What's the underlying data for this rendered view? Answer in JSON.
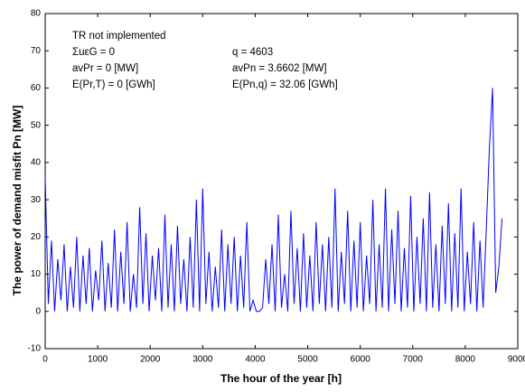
{
  "chart_data": {
    "type": "line",
    "xlabel": "The hour of the year   [h]",
    "ylabel": "The power of demand misfit  Pn [MW]",
    "annotations": [
      "TR not implemented",
      "ΣuεG = 0",
      "avPr = 0 [MW]",
      "E(Pr,T) = 0 [GWh]",
      "q = 4603",
      "avPn = 3.6602 [MW]",
      "E(Pn,q) = 32.06 [GWh]"
    ],
    "xlim": [
      0,
      9000
    ],
    "xticks": [
      0,
      1000,
      2000,
      3000,
      4000,
      5000,
      6000,
      7000,
      8000,
      9000
    ],
    "ylim": [
      -10,
      80
    ],
    "yticks": [
      -10,
      0,
      10,
      20,
      30,
      40,
      50,
      60,
      70,
      80
    ],
    "grid": false,
    "x": [
      0,
      60,
      120,
      180,
      240,
      300,
      360,
      420,
      480,
      540,
      600,
      660,
      720,
      780,
      840,
      900,
      960,
      1020,
      1080,
      1140,
      1200,
      1260,
      1320,
      1380,
      1440,
      1500,
      1560,
      1620,
      1680,
      1740,
      1800,
      1860,
      1920,
      1980,
      2040,
      2100,
      2160,
      2220,
      2280,
      2340,
      2400,
      2460,
      2520,
      2580,
      2640,
      2700,
      2760,
      2820,
      2880,
      2940,
      3000,
      3060,
      3120,
      3180,
      3240,
      3300,
      3360,
      3420,
      3480,
      3540,
      3600,
      3660,
      3720,
      3780,
      3840,
      3900,
      3960,
      4020,
      4080,
      4140,
      4200,
      4260,
      4320,
      4380,
      4440,
      4500,
      4560,
      4620,
      4680,
      4740,
      4800,
      4860,
      4920,
      4980,
      5040,
      5100,
      5160,
      5220,
      5280,
      5340,
      5400,
      5460,
      5520,
      5580,
      5640,
      5700,
      5760,
      5820,
      5880,
      5940,
      6000,
      6060,
      6120,
      6180,
      6240,
      6300,
      6360,
      6420,
      6480,
      6540,
      6600,
      6660,
      6720,
      6780,
      6840,
      6900,
      6960,
      7020,
      7080,
      7140,
      7200,
      7260,
      7320,
      7380,
      7440,
      7500,
      7560,
      7620,
      7680,
      7740,
      7800,
      7860,
      7920,
      7980,
      8040,
      8100,
      8160,
      8220,
      8280,
      8340,
      8400,
      8460,
      8520,
      8580,
      8640,
      8700
    ],
    "series": [
      {
        "color": "#0000ff",
        "values": [
          36,
          2,
          19,
          0,
          14,
          3,
          18,
          0,
          12,
          1,
          20,
          0,
          15,
          2,
          17,
          0,
          11,
          3,
          19,
          0,
          13,
          1,
          22,
          0,
          16,
          2,
          24,
          0,
          10,
          1,
          28,
          2,
          21,
          0,
          15,
          3,
          17,
          0,
          26,
          1,
          18,
          0,
          23,
          2,
          14,
          0,
          20,
          1,
          30,
          0,
          33,
          2,
          16,
          0,
          12,
          1,
          22,
          0,
          18,
          2,
          20,
          0,
          15,
          1,
          24,
          0,
          3,
          0,
          0,
          1,
          14,
          2,
          18,
          0,
          26,
          1,
          10,
          0,
          27,
          2,
          17,
          0,
          21,
          1,
          15,
          0,
          24,
          2,
          18,
          0,
          20,
          1,
          33,
          0,
          16,
          2,
          27,
          0,
          19,
          1,
          24,
          0,
          15,
          2,
          30,
          0,
          18,
          1,
          33,
          0,
          22,
          2,
          27,
          0,
          17,
          1,
          31,
          0,
          20,
          2,
          25,
          0,
          32,
          1,
          18,
          0,
          23,
          2,
          29,
          0,
          21,
          1,
          33,
          0,
          16,
          2,
          24,
          0,
          19,
          1,
          22,
          44,
          60,
          5,
          12,
          25
        ]
      }
    ]
  }
}
